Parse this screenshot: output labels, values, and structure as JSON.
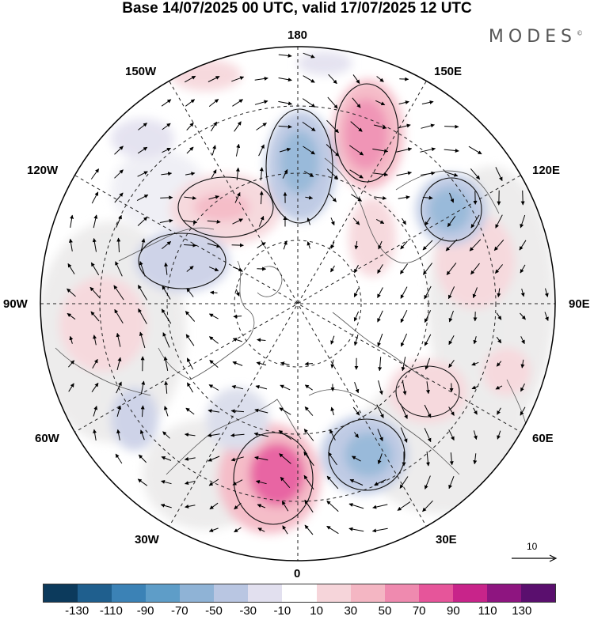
{
  "title": "Base 14/07/2025 00 UTC, valid 17/07/2025 12 UTC",
  "brand": "MODES",
  "brand_mark": "©",
  "longitude_labels": {
    "top": "180",
    "bottom": "0",
    "left": "90W",
    "right": "90E",
    "upper_left_1": "150W",
    "upper_left_2": "120W",
    "upper_right_1": "150E",
    "upper_right_2": "120E",
    "lower_left_1": "60W",
    "lower_left_2": "30W",
    "lower_right_1": "60E",
    "lower_right_2": "30E"
  },
  "vector_scale_label": "10",
  "colorbar": {
    "colors": [
      "#0c3a5c",
      "#1f5f8e",
      "#3b82b6",
      "#5e9dc8",
      "#8fb3d6",
      "#b9c6e2",
      "#e2e0ef",
      "#ffffff",
      "#f6d5da",
      "#f4b6c3",
      "#ef8aaf",
      "#e6559a",
      "#c8248a",
      "#8e1580",
      "#5a0f6e"
    ],
    "ticks": [
      "-130",
      "-110",
      "-90",
      "-70",
      "-50",
      "-30",
      "-10",
      "10",
      "30",
      "50",
      "70",
      "90",
      "110",
      "130"
    ]
  }
}
